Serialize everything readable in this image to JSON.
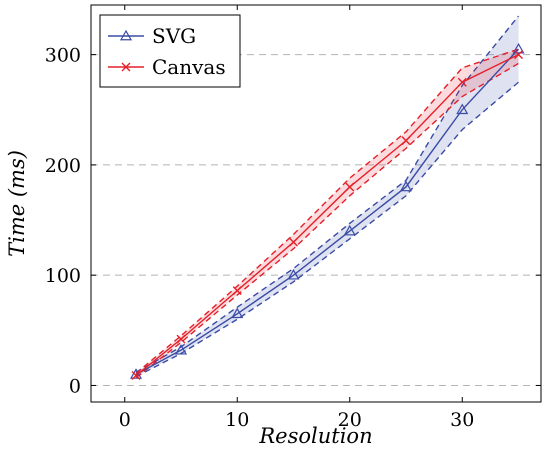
{
  "chart_data": {
    "type": "line",
    "title": "",
    "xlabel": "Resolution",
    "ylabel": "Time (ms)",
    "xlim": [
      -3,
      37
    ],
    "ylim": [
      -15,
      345
    ],
    "x_ticks": [
      0,
      10,
      20,
      30
    ],
    "y_ticks": [
      0,
      100,
      200,
      300
    ],
    "grid": "horizontal-dashed",
    "legend_position": "top-left",
    "series": [
      {
        "name": "SVG",
        "color": "#3a4ba5",
        "marker": "triangle",
        "x": [
          1,
          5,
          10,
          15,
          20,
          25,
          30,
          35
        ],
        "y": [
          10,
          32,
          65,
          100,
          140,
          180,
          250,
          305
        ],
        "lower": [
          8,
          29,
          60,
          94,
          133,
          172,
          232,
          275
        ],
        "upper": [
          12,
          35,
          71,
          106,
          147,
          186,
          272,
          335
        ]
      },
      {
        "name": "Canvas",
        "color": "#e5202a",
        "marker": "x",
        "x": [
          1,
          5,
          10,
          15,
          20,
          25,
          30,
          35
        ],
        "y": [
          9,
          42,
          86,
          130,
          180,
          222,
          275,
          300
        ],
        "lower": [
          7,
          39,
          82,
          124,
          172,
          215,
          262,
          292
        ],
        "upper": [
          11,
          45,
          90,
          137,
          188,
          230,
          288,
          305
        ]
      }
    ]
  }
}
